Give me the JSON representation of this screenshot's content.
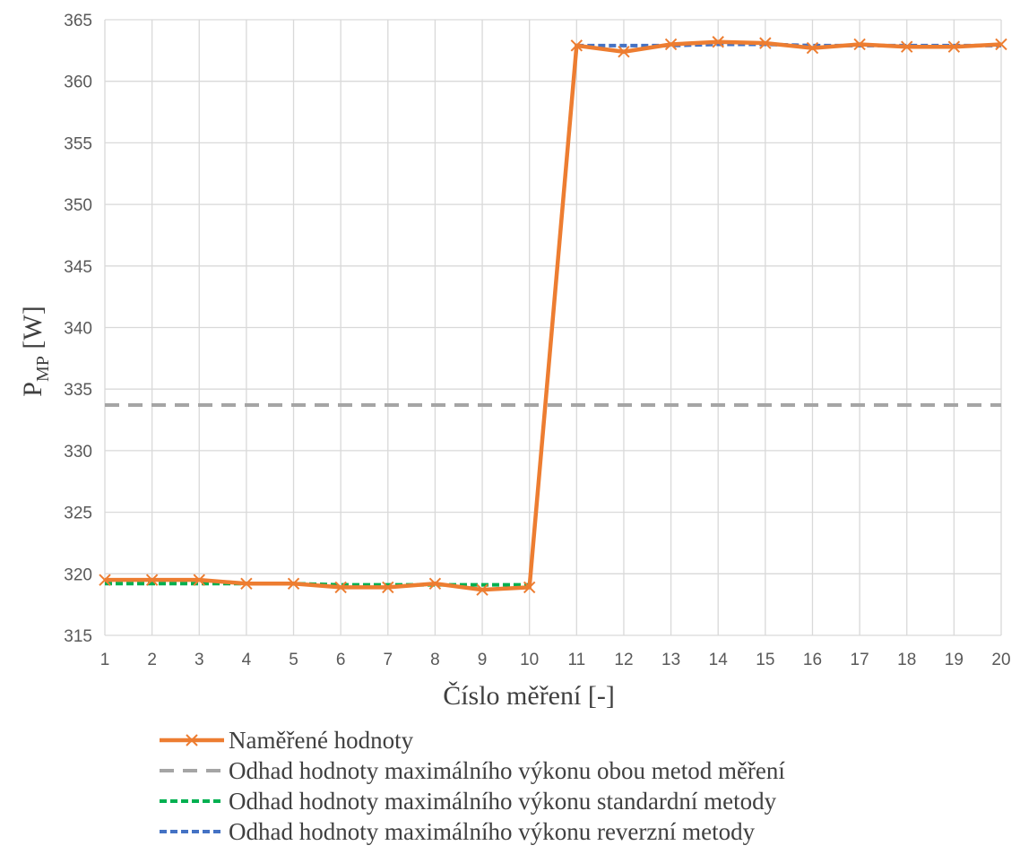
{
  "chart_data": {
    "type": "line",
    "title": "",
    "xlabel": "Číslo měření [-]",
    "ylabel_main": "P",
    "ylabel_sub": "MP",
    "ylabel_unit": " [W]",
    "x": [
      1,
      2,
      3,
      4,
      5,
      6,
      7,
      8,
      9,
      10,
      11,
      12,
      13,
      14,
      15,
      16,
      17,
      18,
      19,
      20
    ],
    "ylim": [
      315,
      365
    ],
    "ystep": 5,
    "grid": true,
    "legend_position": "bottom",
    "series": [
      {
        "name": "Naměřené hodnoty",
        "color": "#ED7D31",
        "style": "solid",
        "marker": "x",
        "values": [
          319.5,
          319.5,
          319.5,
          319.2,
          319.2,
          318.9,
          318.9,
          319.2,
          318.7,
          318.9,
          362.9,
          362.4,
          363.0,
          363.2,
          363.1,
          362.7,
          363.0,
          362.8,
          362.8,
          363.0
        ]
      },
      {
        "name": "Odhad hodnoty maximálního výkonu obou metod měření",
        "color": "#A5A5A5",
        "style": "dashed",
        "marker": "none",
        "values": [
          333.7,
          333.7,
          333.7,
          333.7,
          333.7,
          333.7,
          333.7,
          333.7,
          333.7,
          333.7,
          333.7,
          333.7,
          333.7,
          333.7,
          333.7,
          333.7,
          333.7,
          333.7,
          333.7,
          333.7
        ]
      },
      {
        "name": "Odhad hodnoty maximálního výkonu standardní metody",
        "color": "#00B050",
        "style": "dotted",
        "marker": "none",
        "values": [
          319.2,
          319.2,
          319.2,
          319.2,
          319.2,
          319.1,
          319.1,
          319.1,
          319.1,
          319.1,
          null,
          null,
          null,
          null,
          null,
          null,
          null,
          null,
          null,
          null
        ]
      },
      {
        "name": "Odhad hodnoty maximálního výkonu reverzní metody",
        "color": "#4472C4",
        "style": "dotted",
        "marker": "none",
        "values": [
          null,
          null,
          null,
          null,
          null,
          null,
          null,
          null,
          null,
          null,
          362.9,
          362.9,
          362.9,
          363.0,
          363.0,
          362.9,
          362.9,
          362.9,
          362.9,
          362.9
        ]
      }
    ]
  }
}
